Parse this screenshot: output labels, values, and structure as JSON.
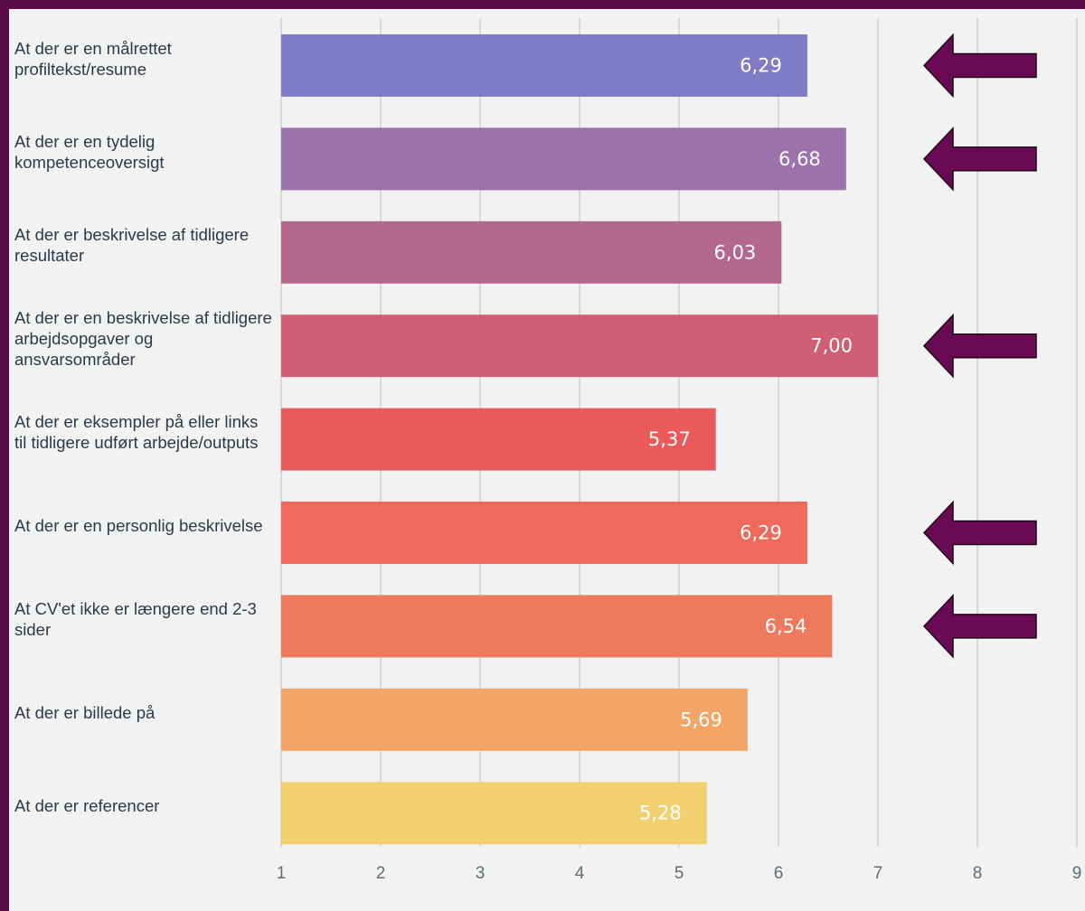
{
  "chart_data": {
    "type": "bar",
    "orientation": "horizontal",
    "categories": [
      "At der er en målrettet profiltekst/resume",
      "At der er en tydelig kompetenceoversigt",
      "At der er beskrivelse af tidligere resultater",
      "At der er en beskrivelse af tidligere arbejdsopgaver og ansvarsområder",
      "At der er eksempler på eller links til tidligere udført arbejde/outputs",
      "At der er en personlig beskrivelse",
      "At CV'et ikke er længere end 2-3 sider",
      "At der er billede på",
      "At der er referencer"
    ],
    "values": [
      6.29,
      6.68,
      6.03,
      7.0,
      5.37,
      6.29,
      6.54,
      5.69,
      5.28
    ],
    "value_labels": [
      "6,29",
      "6,68",
      "6,03",
      "7,00",
      "5,37",
      "6,29",
      "6,54",
      "5,69",
      "5,28"
    ],
    "bar_colors": [
      "#7f7bc4",
      "#9b72ab",
      "#b4688d",
      "#cf6074",
      "#eb5a5a",
      "#f06a5b",
      "#ef795d",
      "#f2a567",
      "#f3d06f"
    ],
    "highlighted_by_arrow": [
      true,
      true,
      false,
      true,
      false,
      true,
      true,
      false,
      false
    ],
    "arrow_color": "#6a0a55",
    "xlim": [
      1,
      9
    ],
    "x_ticks": [
      1,
      2,
      3,
      4,
      5,
      6,
      7,
      8,
      9
    ],
    "title": "",
    "xlabel": "",
    "ylabel": "",
    "grid": "vertical"
  }
}
